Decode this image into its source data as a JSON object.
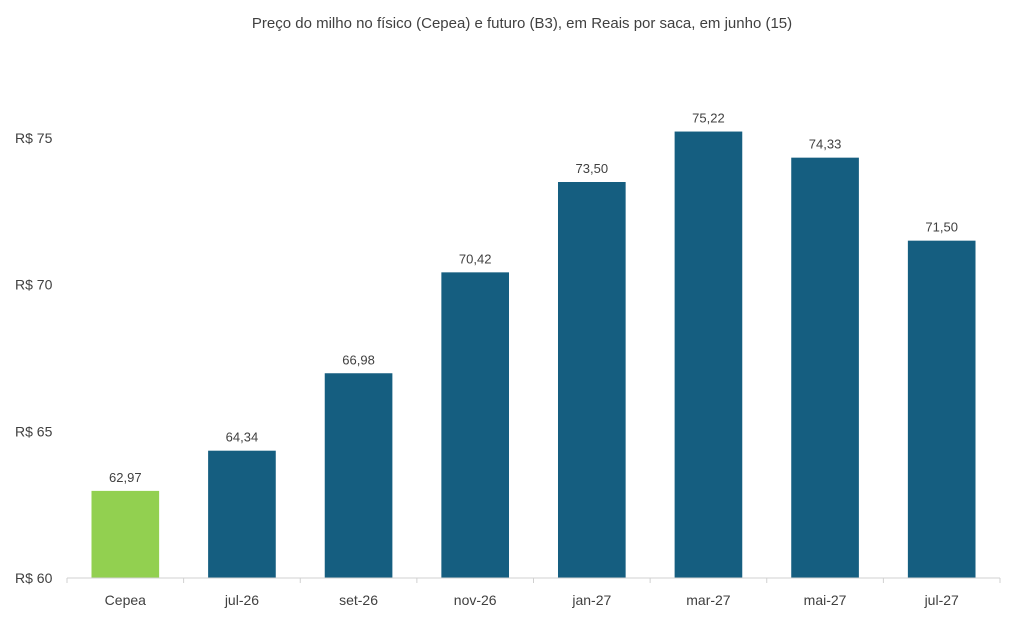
{
  "chart_data": {
    "type": "bar",
    "title": "Preço do milho no físico (Cepea) e futuro (B3), em Reais por saca, em junho (15)",
    "xlabel": "",
    "ylabel": "",
    "categories": [
      "Cepea",
      "jul-26",
      "set-26",
      "nov-26",
      "jan-27",
      "mar-27",
      "mai-27",
      "jul-27"
    ],
    "values": [
      62.97,
      64.34,
      66.98,
      70.42,
      73.5,
      75.22,
      74.33,
      71.5
    ],
    "data_labels": [
      "62,97",
      "64,34",
      "66,98",
      "70,42",
      "73,50",
      "75,22",
      "74,33",
      "71,50"
    ],
    "bar_colors": [
      "#92d050",
      "#155e80",
      "#155e80",
      "#155e80",
      "#155e80",
      "#155e80",
      "#155e80",
      "#155e80"
    ],
    "ylim": [
      60,
      75
    ],
    "yticks": [
      60,
      65,
      70,
      75
    ],
    "ytick_labels": [
      "R$ 60",
      "R$ 65",
      "R$ 70",
      "R$ 75"
    ],
    "grid": false,
    "legend": "none"
  }
}
